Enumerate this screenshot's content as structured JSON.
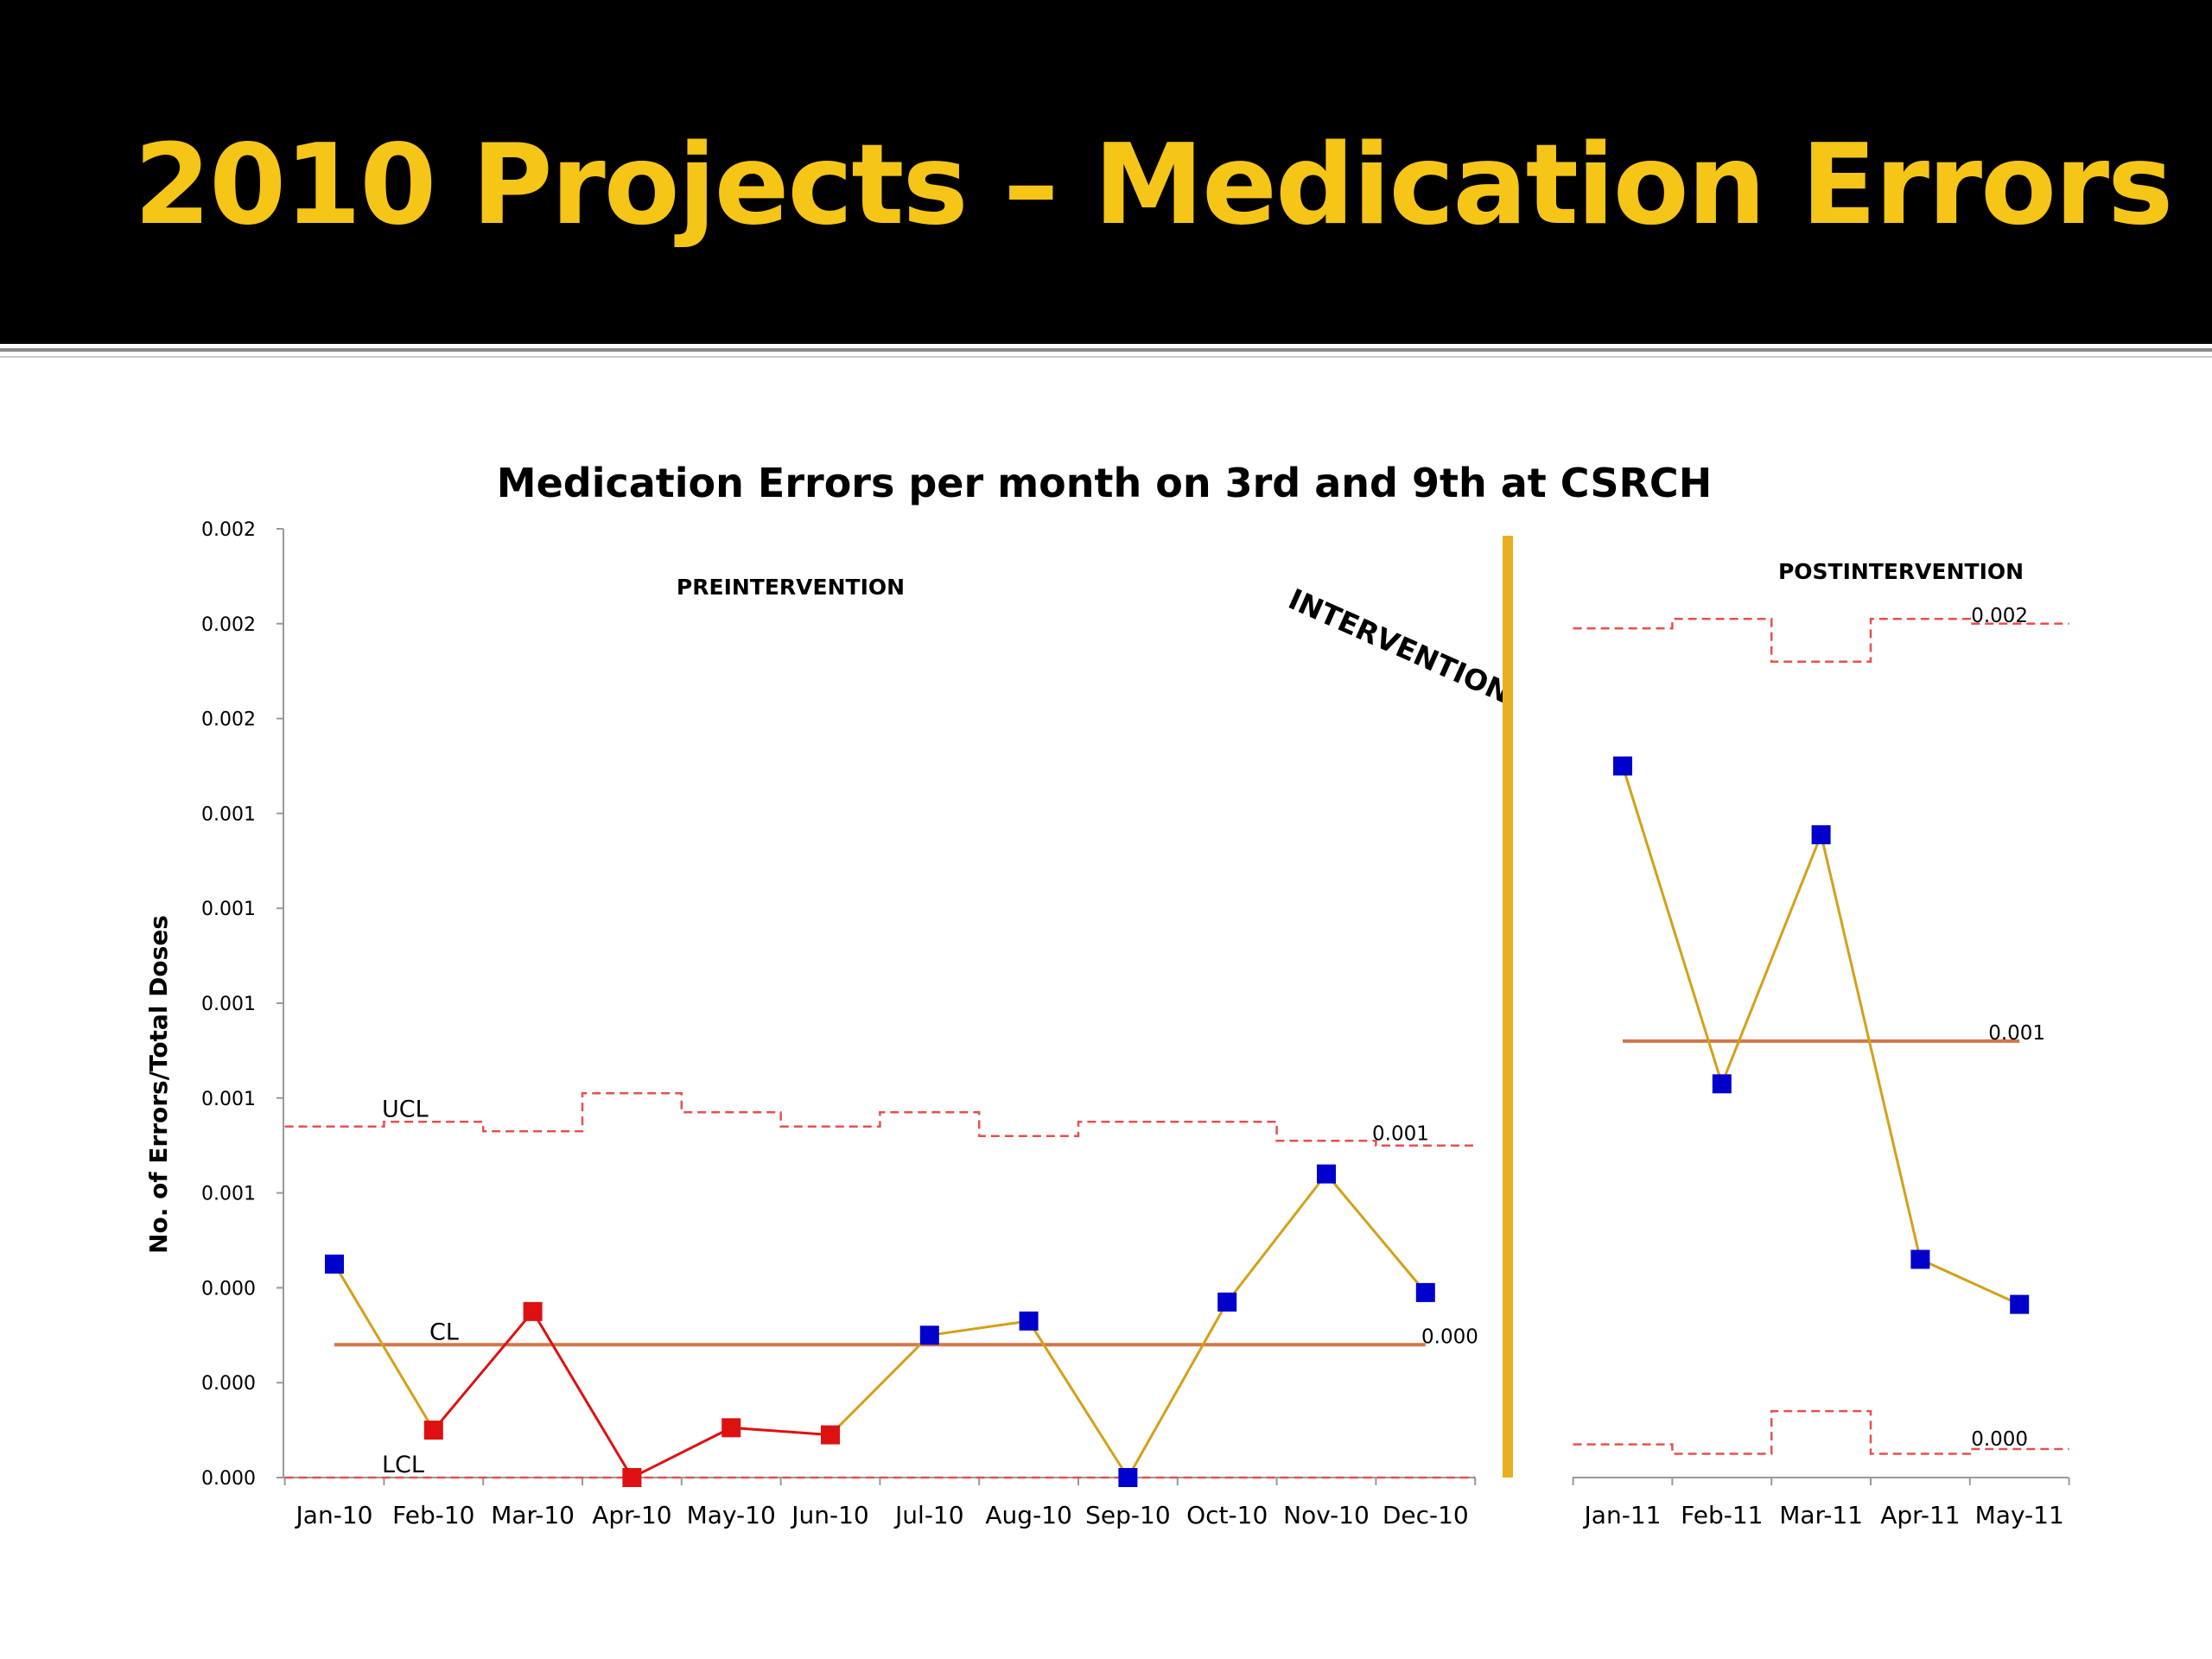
{
  "slide": {
    "title": "2010 Projects – Medication Errors"
  },
  "colors": {
    "header_bg": "#000000",
    "title": "#f5c518",
    "line_series": "#d4a017",
    "out_of_run_segment": "#dd1111",
    "blue_marker": "#0000cc",
    "red_marker": "#dd1111",
    "center_line": "#d2774a",
    "control_limits": "#e65050",
    "intervention_bar": "#e8b020"
  },
  "chart_data": {
    "type": "line",
    "title": "Medication Errors per month on 3rd and 9th at CSRCH",
    "ylabel": "No. of Errors/Total Doses",
    "xlabel": "",
    "ylim": [
      0,
      0.002
    ],
    "y_tick_labels": [
      "0.000",
      "0.000",
      "0.000",
      "0.001",
      "0.001",
      "0.001",
      "0.001",
      "0.001",
      "0.002",
      "0.002",
      "0.002"
    ],
    "grid": false,
    "annotations": {
      "pre": "PREINTERVENTION",
      "intervention": "INTERVENTION",
      "post": "POSTINTERVENTION"
    },
    "phases": [
      {
        "name": "PREINTERVENTION",
        "categories": [
          "Jan-10",
          "Feb-10",
          "Mar-10",
          "Apr-10",
          "May-10",
          "Jun-10",
          "Jul-10",
          "Aug-10",
          "Sep-10",
          "Oct-10",
          "Nov-10",
          "Dec-10"
        ],
        "values": [
          0.00045,
          0.0001,
          0.00035,
          0.0,
          0.000105,
          9e-05,
          0.0003,
          0.00033,
          0.0,
          0.00037,
          0.00064,
          0.00039
        ],
        "marker_colors": [
          "blue",
          "red",
          "red",
          "red",
          "red",
          "red",
          "blue",
          "blue",
          "blue",
          "blue",
          "blue",
          "blue"
        ],
        "segment_colors": [
          "gold",
          "red",
          "red",
          "red",
          "red",
          "gold",
          "gold",
          "gold",
          "gold",
          "gold",
          "gold"
        ],
        "cl": 0.00028,
        "ucl": [
          0.00074,
          0.00075,
          0.00073,
          0.00081,
          0.00077,
          0.00074,
          0.00077,
          0.00072,
          0.00075,
          0.00075,
          0.00071,
          0.0007
        ],
        "lcl": [
          0,
          0,
          0,
          0,
          0,
          0,
          0,
          0,
          0,
          0,
          0,
          0
        ],
        "labels": {
          "ucl": "UCL",
          "cl": "CL",
          "lcl": "LCL",
          "ucl_value": "0.001",
          "cl_value": "0.000"
        }
      },
      {
        "name": "POSTINTERVENTION",
        "categories": [
          "Jan-11",
          "Feb-11",
          "Mar-11",
          "Apr-11",
          "May-11"
        ],
        "values": [
          0.0015,
          0.00083,
          0.001355,
          0.00046,
          0.000365
        ],
        "marker_colors": [
          "blue",
          "blue",
          "blue",
          "blue",
          "blue"
        ],
        "segment_colors": [
          "gold",
          "gold",
          "gold",
          "gold"
        ],
        "cl": 0.00092,
        "ucl": [
          0.00179,
          0.00181,
          0.00172,
          0.00181,
          0.0018
        ],
        "lcl": [
          7e-05,
          5e-05,
          0.00014,
          5e-05,
          6e-05
        ],
        "labels": {
          "ucl_value": "0.002",
          "cl_value": "0.001",
          "lcl_value": "0.000"
        }
      }
    ]
  }
}
